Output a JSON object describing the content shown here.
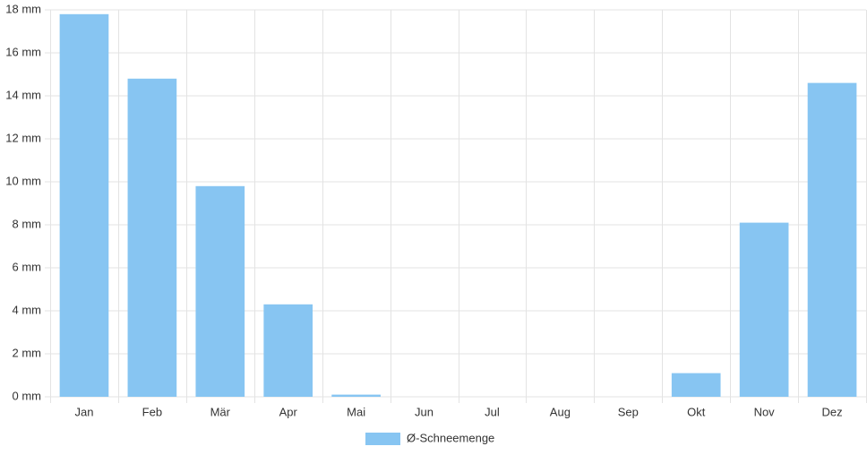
{
  "chart_data": {
    "type": "bar",
    "categories": [
      "Jan",
      "Feb",
      "Mär",
      "Apr",
      "Mai",
      "Jun",
      "Jul",
      "Aug",
      "Sep",
      "Okt",
      "Nov",
      "Dez"
    ],
    "series": [
      {
        "name": "Ø-Schneemenge",
        "color": "#87c5f2",
        "values": [
          17.8,
          14.8,
          9.8,
          4.3,
          0.1,
          0,
          0,
          0,
          0,
          1.1,
          8.1,
          14.6
        ]
      }
    ],
    "ylim": [
      0,
      18
    ],
    "yticks": [
      {
        "value": 0,
        "label": "0 mm"
      },
      {
        "value": 2,
        "label": "2 mm"
      },
      {
        "value": 4,
        "label": "4 mm"
      },
      {
        "value": 6,
        "label": "6 mm"
      },
      {
        "value": 8,
        "label": "8 mm"
      },
      {
        "value": 10,
        "label": "10 mm"
      },
      {
        "value": 12,
        "label": "12 mm"
      },
      {
        "value": 14,
        "label": "14 mm"
      },
      {
        "value": 16,
        "label": "16 mm"
      },
      {
        "value": 18,
        "label": "18 mm"
      }
    ],
    "grid": true,
    "legend": "bottom"
  }
}
